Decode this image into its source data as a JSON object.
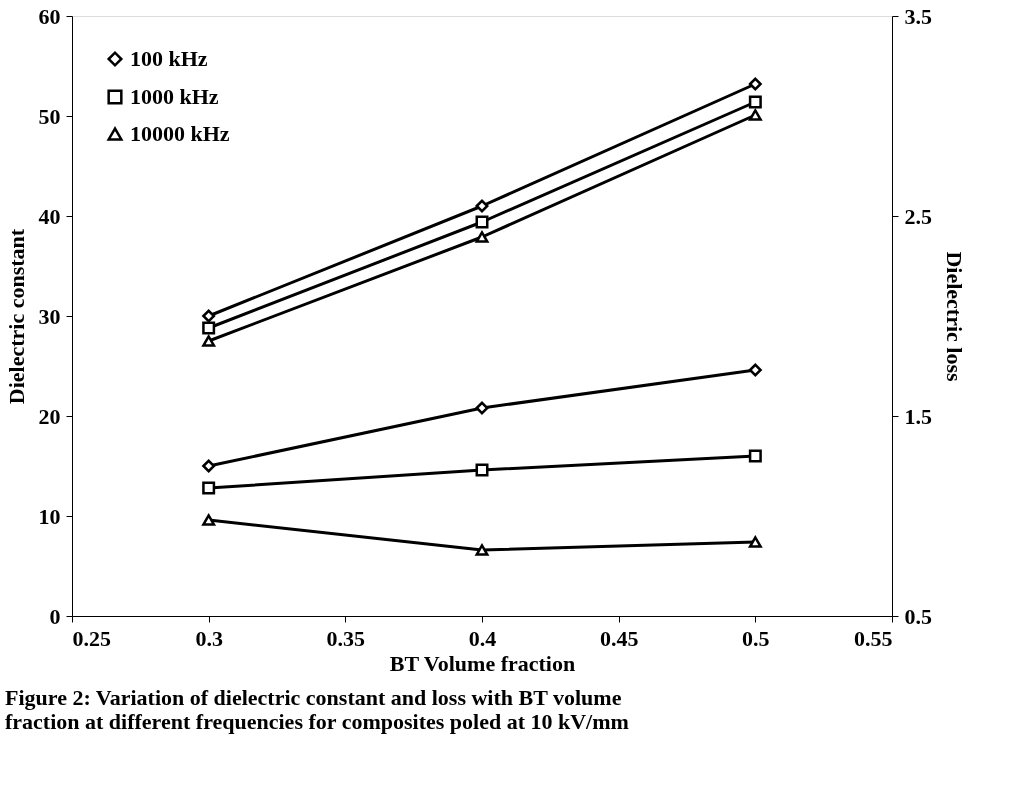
{
  "chart_data": {
    "type": "line",
    "xlabel": "BT Volume fraction",
    "ylabel": "Dielectric  constant",
    "y2label": "Dielectric  loss",
    "x": [
      0.3,
      0.4,
      0.5
    ],
    "series": [
      {
        "name": "100 kHz",
        "color": "#000000",
        "marker": "diamond",
        "values": [
          30.0,
          41.0,
          53.2
        ]
      },
      {
        "name": "1000 kHz",
        "color": "#000000",
        "marker": "square",
        "values": [
          28.8,
          39.4,
          51.4
        ]
      },
      {
        "name": "10000 kHz",
        "color": "#000000",
        "marker": "triangle",
        "values": [
          27.5,
          37.9,
          50.1
        ]
      },
      {
        "color": "#000000",
        "marker": "diamond",
        "axis": "y2",
        "values": [
          1.25,
          1.54,
          1.73
        ]
      },
      {
        "color": "#000000",
        "marker": "square",
        "axis": "y2",
        "values": [
          1.14,
          1.23,
          1.3
        ]
      },
      {
        "color": "#000000",
        "marker": "triangle",
        "axis": "y2",
        "values": [
          0.98,
          0.83,
          0.87
        ]
      }
    ],
    "xlim": [
      0.25,
      0.55
    ],
    "xticks": [
      0.25,
      0.3,
      0.35,
      0.4,
      0.45,
      0.5,
      0.55
    ],
    "ylim": [
      0,
      60
    ],
    "yticks": [
      0,
      10,
      20,
      30,
      40,
      50,
      60
    ],
    "y2lim": [
      0.5,
      3.5
    ],
    "y2ticks": [
      0.5,
      1.5,
      2.5,
      3.5
    ],
    "grid": false,
    "legend": "top left",
    "line_style": "solid",
    "annotations": [
      "Figure 2: Variation of dielectric constant and loss with BT volume fraction at different frequencies for composites poled at 10 kV/mm"
    ]
  }
}
